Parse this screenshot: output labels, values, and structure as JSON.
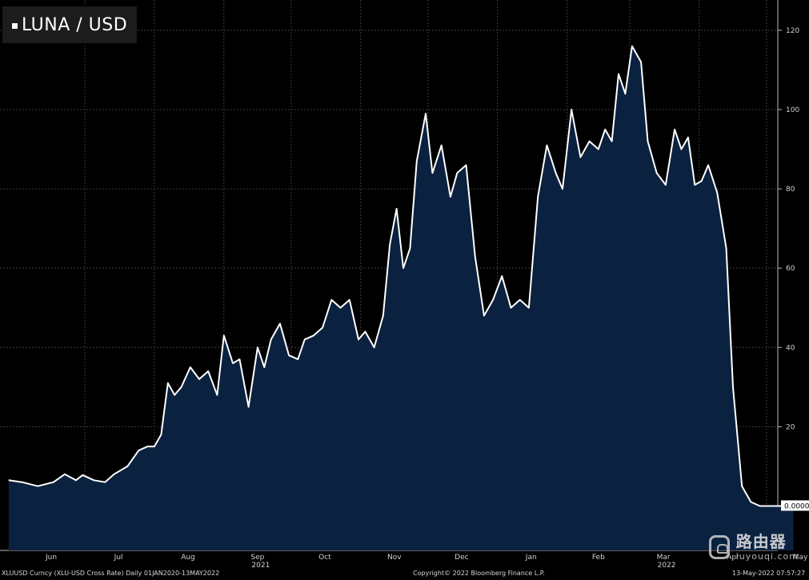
{
  "legend": {
    "label": "LUNA / USD"
  },
  "footer": {
    "left": "XLUUSD Curncy (XLU-USD Cross Rate)  Daily 01JAN2020-13MAY2022",
    "center": "Copyright© 2022 Bloomberg Finance L.P.",
    "right": "13-May-2022 07:57:27"
  },
  "watermark": {
    "cn": "路由器",
    "en": "luyouqi.com"
  },
  "colors": {
    "background": "#000000",
    "line": "#ffffff",
    "fill": "#0b2140",
    "grid": "#3a3a3a"
  },
  "chart_data": {
    "type": "area",
    "title": "",
    "xlabel": "",
    "ylabel": "",
    "ylim": [
      -10,
      122
    ],
    "yticks": [
      20,
      40,
      60,
      80,
      100,
      120
    ],
    "last_value_label": "0.0000",
    "months": [
      "Jun",
      "Jul",
      "Aug",
      "Sep",
      "Oct",
      "Nov",
      "Dec",
      "Jan",
      "Feb",
      "Mar",
      "Apr",
      "May"
    ],
    "years": [
      "2021",
      "2022"
    ],
    "grid": true,
    "legend_position": "top-left",
    "series": [
      {
        "name": "LUNA / USD",
        "x": [
          "2021-05-28",
          "2021-06-03",
          "2021-06-10",
          "2021-06-17",
          "2021-06-22",
          "2021-06-27",
          "2021-06-30",
          "2021-07-05",
          "2021-07-10",
          "2021-07-14",
          "2021-07-20",
          "2021-07-25",
          "2021-07-29",
          "2021-08-01",
          "2021-08-04",
          "2021-08-07",
          "2021-08-10",
          "2021-08-13",
          "2021-08-17",
          "2021-08-21",
          "2021-08-25",
          "2021-08-29",
          "2021-09-01",
          "2021-09-05",
          "2021-09-08",
          "2021-09-12",
          "2021-09-16",
          "2021-09-19",
          "2021-09-22",
          "2021-09-26",
          "2021-09-30",
          "2021-10-04",
          "2021-10-07",
          "2021-10-11",
          "2021-10-15",
          "2021-10-19",
          "2021-10-23",
          "2021-10-27",
          "2021-10-31",
          "2021-11-03",
          "2021-11-07",
          "2021-11-11",
          "2021-11-14",
          "2021-11-17",
          "2021-11-20",
          "2021-11-23",
          "2021-11-26",
          "2021-11-30",
          "2021-12-03",
          "2021-12-07",
          "2021-12-11",
          "2021-12-14",
          "2021-12-18",
          "2021-12-22",
          "2021-12-26",
          "2021-12-30",
          "2022-01-03",
          "2022-01-07",
          "2022-01-11",
          "2022-01-15",
          "2022-01-19",
          "2022-01-23",
          "2022-01-27",
          "2022-01-30",
          "2022-02-03",
          "2022-02-07",
          "2022-02-11",
          "2022-02-15",
          "2022-02-18",
          "2022-02-21",
          "2022-02-24",
          "2022-02-27",
          "2022-03-02",
          "2022-03-06",
          "2022-03-09",
          "2022-03-13",
          "2022-03-17",
          "2022-03-21",
          "2022-03-24",
          "2022-03-27",
          "2022-03-30",
          "2022-04-02",
          "2022-04-05",
          "2022-04-09",
          "2022-04-13",
          "2022-04-16",
          "2022-04-20",
          "2022-04-24",
          "2022-04-28",
          "2022-05-02",
          "2022-05-05",
          "2022-05-07",
          "2022-05-09",
          "2022-05-10",
          "2022-05-11",
          "2022-05-12",
          "2022-05-13"
        ],
        "values": [
          6.5,
          6.0,
          5.0,
          6.0,
          8.0,
          6.5,
          7.8,
          6.5,
          6.0,
          8.0,
          10.0,
          14.0,
          15.0,
          15.0,
          18.0,
          31.0,
          28.0,
          30.0,
          35.0,
          32.0,
          34.0,
          28.0,
          43.0,
          36.0,
          37.0,
          25.0,
          40.0,
          35.0,
          42.0,
          46.0,
          38.0,
          37.0,
          42.0,
          43.0,
          45.0,
          52.0,
          50.0,
          52.0,
          42.0,
          44.0,
          40.0,
          48.0,
          66.0,
          75.0,
          60.0,
          65.0,
          87.0,
          99.0,
          84.0,
          91.0,
          78.0,
          84.0,
          86.0,
          63.0,
          48.0,
          52.0,
          58.0,
          50.0,
          52.0,
          50.0,
          78.0,
          91.0,
          84.0,
          80.0,
          100.0,
          88.0,
          92.0,
          90.0,
          95.0,
          92.0,
          109.0,
          104.0,
          116.0,
          112.0,
          92.0,
          84.0,
          81.0,
          95.0,
          90.0,
          93.0,
          81.0,
          82.0,
          86.0,
          79.0,
          65.0,
          30.0,
          5.0,
          1.0,
          0.0,
          0.0,
          0.0,
          0.0,
          0.0,
          0.0,
          0.0,
          0.0,
          0.0
        ]
      }
    ]
  }
}
